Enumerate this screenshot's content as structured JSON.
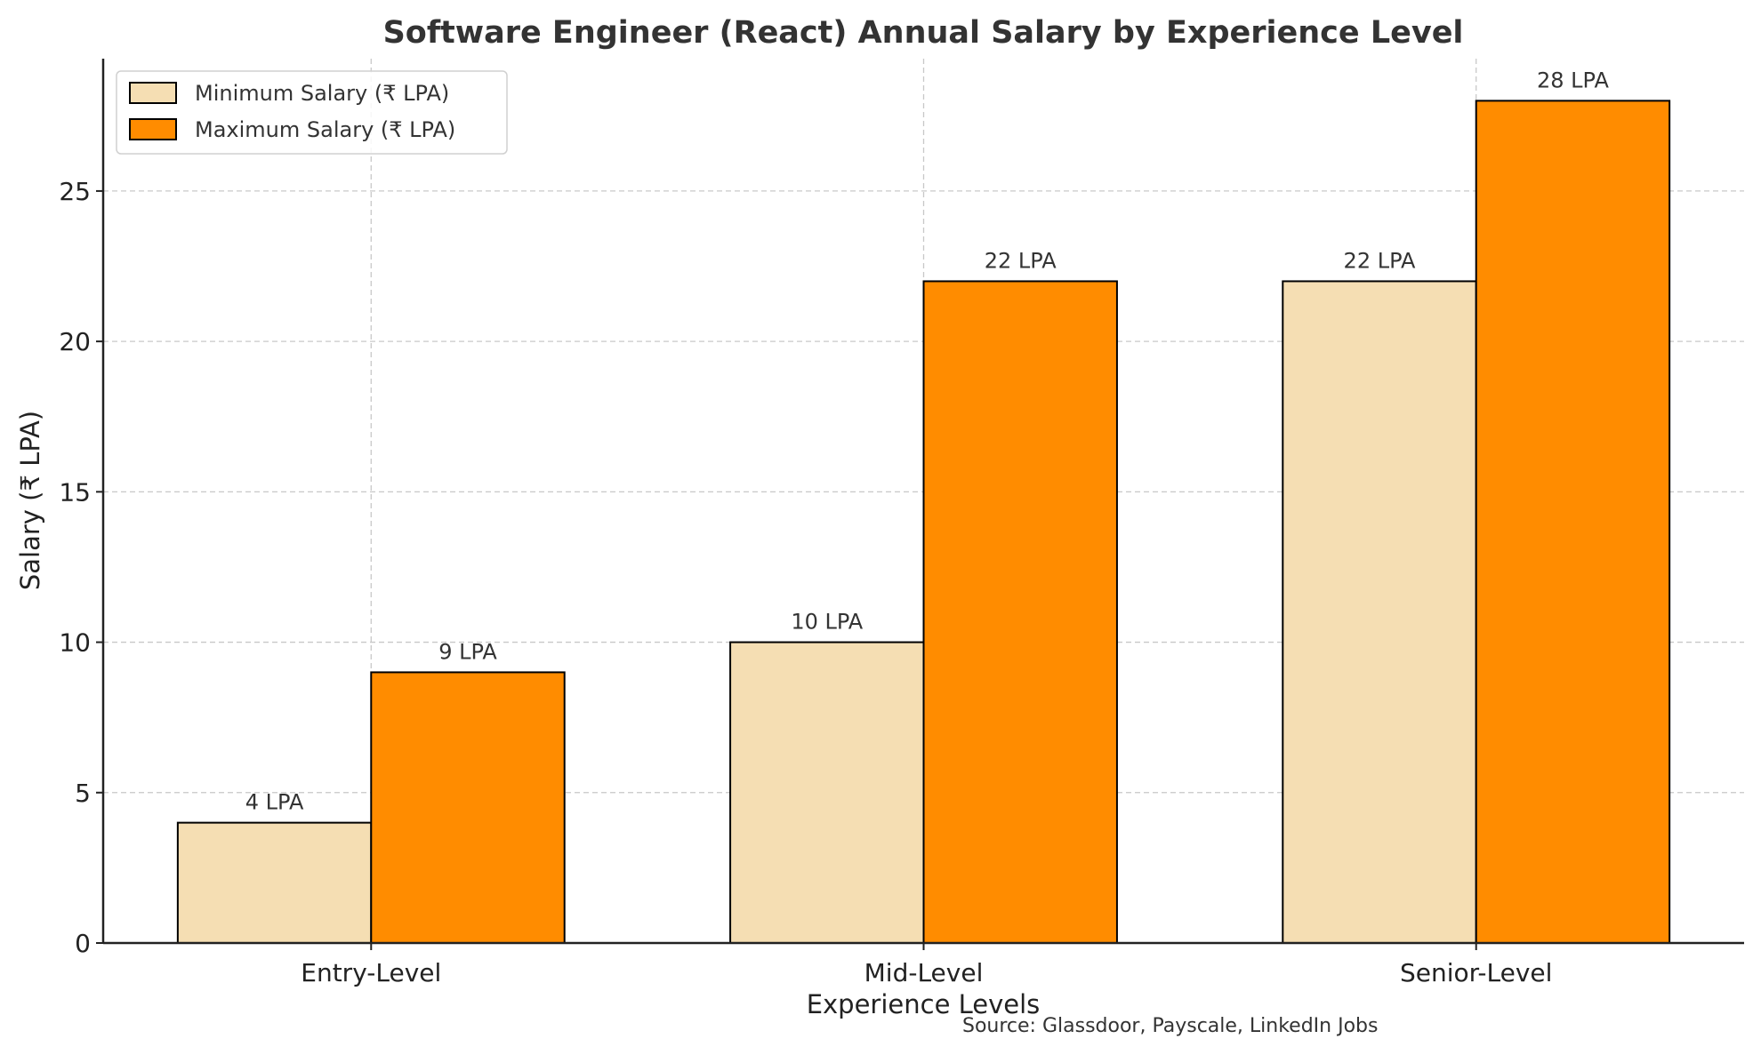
{
  "chart_data": {
    "type": "bar",
    "title": "Software Engineer (React) Annual Salary by Experience Level",
    "xlabel": "Experience Levels",
    "ylabel": "Salary (₹ LPA)",
    "categories": [
      "Entry-Level",
      "Mid-Level",
      "Senior-Level"
    ],
    "series": [
      {
        "name": "Minimum Salary (₹ LPA)",
        "values": [
          4,
          10,
          22
        ],
        "color": "#F5DEB3",
        "labels": [
          "4 LPA",
          "10 LPA",
          "22 LPA"
        ]
      },
      {
        "name": "Maximum Salary (₹ LPA)",
        "values": [
          9,
          22,
          28
        ],
        "color": "#FF8C00",
        "labels": [
          "9 LPA",
          "22 LPA",
          "28 LPA"
        ]
      }
    ],
    "ylim": [
      0,
      29.4
    ],
    "yticks": [
      0,
      5,
      10,
      15,
      20,
      25
    ],
    "grid": true,
    "legend_position": "top-left",
    "annotation": "Source: Glassdoor, Payscale, LinkedIn Jobs"
  }
}
